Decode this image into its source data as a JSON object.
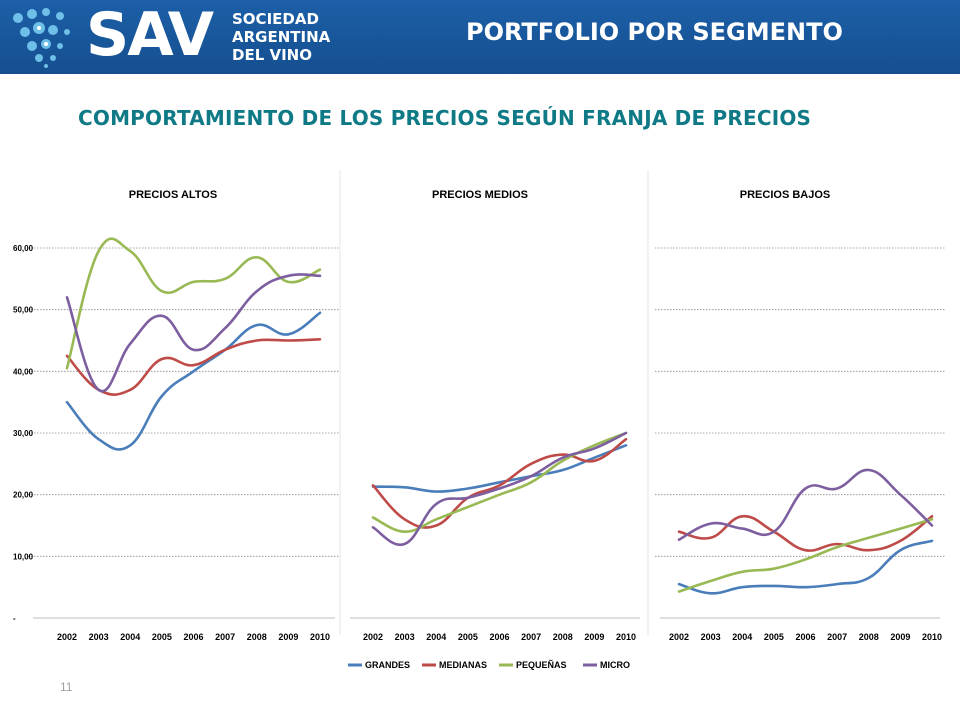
{
  "header": {
    "logo_main": "SAV",
    "logo_lines": [
      "SOCIEDAD",
      "ARGENTINA",
      "DEL VINO"
    ],
    "title": "PORTFOLIO POR SEGMENTO",
    "colors": {
      "background": "#1a5ca5",
      "dots": "#6fc0e8"
    }
  },
  "subtitle": "COMPORTAMIENTO DE LOS PRECIOS SEGÚN FRANJA DE PRECIOS",
  "page_number": "11",
  "chart_data": [
    {
      "type": "line",
      "title": "PRECIOS ALTOS",
      "x": [
        "2002",
        "2003",
        "2004",
        "2005",
        "2006",
        "2007",
        "2008",
        "2009",
        "2010"
      ],
      "ylim": [
        0,
        60
      ],
      "yticks": [
        0,
        10,
        20,
        30,
        40,
        50,
        60
      ],
      "ytick_labels": [
        "-",
        "10,00",
        "20,00",
        "30,00",
        "40,00",
        "50,00",
        "60,00"
      ],
      "grid": true,
      "series": [
        {
          "name": "GRANDES",
          "color": "#4a7ebb",
          "values": [
            35.0,
            29.0,
            28.0,
            36.0,
            40.0,
            43.5,
            47.5,
            46.0,
            49.5
          ]
        },
        {
          "name": "MEDIANAS",
          "color": "#be4b48",
          "values": [
            42.5,
            37.0,
            37.0,
            42.0,
            41.0,
            43.5,
            45.0,
            45.0,
            45.2
          ]
        },
        {
          "name": "PEQUEÑAS",
          "color": "#98b954",
          "values": [
            40.5,
            59.5,
            59.5,
            53.0,
            54.5,
            55.0,
            58.5,
            54.5,
            56.5
          ]
        },
        {
          "name": "MICRO",
          "color": "#7d5fa0",
          "values": [
            52.0,
            37.0,
            44.5,
            49.0,
            43.5,
            47.0,
            53.0,
            55.5,
            55.5
          ]
        }
      ]
    },
    {
      "type": "line",
      "title": "PRECIOS MEDIOS",
      "x": [
        "2002",
        "2003",
        "2004",
        "2005",
        "2006",
        "2007",
        "2008",
        "2009",
        "2010"
      ],
      "ylim": [
        0,
        60
      ],
      "grid": false,
      "series": [
        {
          "name": "GRANDES",
          "color": "#4a7ebb",
          "values": [
            21.3,
            21.2,
            20.5,
            21.0,
            22.0,
            23.0,
            24.0,
            26.0,
            28.0
          ]
        },
        {
          "name": "MEDIANAS",
          "color": "#be4b48",
          "values": [
            21.5,
            16.0,
            15.0,
            19.5,
            21.5,
            25.0,
            26.5,
            25.5,
            29.0
          ]
        },
        {
          "name": "PEQUEÑAS",
          "color": "#98b954",
          "values": [
            16.3,
            14.0,
            16.0,
            18.0,
            20.0,
            22.0,
            25.5,
            28.0,
            30.0
          ]
        },
        {
          "name": "MICRO",
          "color": "#7d5fa0",
          "values": [
            14.7,
            12.0,
            18.5,
            19.5,
            21.0,
            23.0,
            26.0,
            27.5,
            30.0
          ]
        }
      ]
    },
    {
      "type": "line",
      "title": "PRECIOS BAJOS",
      "x": [
        "2002",
        "2003",
        "2004",
        "2005",
        "2006",
        "2007",
        "2008",
        "2009",
        "2010"
      ],
      "ylim": [
        0,
        60
      ],
      "grid": true,
      "series": [
        {
          "name": "GRANDES",
          "color": "#4a7ebb",
          "values": [
            5.5,
            4.0,
            5.0,
            5.2,
            5.0,
            5.5,
            6.5,
            11.0,
            12.5
          ]
        },
        {
          "name": "MEDIANAS",
          "color": "#be4b48",
          "values": [
            14.0,
            13.0,
            16.5,
            14.0,
            11.0,
            12.0,
            11.0,
            12.5,
            16.5
          ]
        },
        {
          "name": "PEQUEÑAS",
          "color": "#98b954",
          "values": [
            4.3,
            6.0,
            7.5,
            8.0,
            9.5,
            11.5,
            13.0,
            14.5,
            16.0
          ]
        },
        {
          "name": "MICRO",
          "color": "#7d5fa0",
          "values": [
            12.7,
            15.3,
            14.5,
            14.0,
            21.0,
            21.0,
            24.0,
            20.0,
            15.0
          ]
        }
      ]
    }
  ],
  "legend": {
    "placement": "bottom",
    "items": [
      {
        "label": "GRANDES",
        "color": "#4a7ebb"
      },
      {
        "label": "MEDIANAS",
        "color": "#be4b48"
      },
      {
        "label": "PEQUEÑAS",
        "color": "#98b954"
      },
      {
        "label": "MICRO",
        "color": "#7d5fa0"
      }
    ]
  }
}
